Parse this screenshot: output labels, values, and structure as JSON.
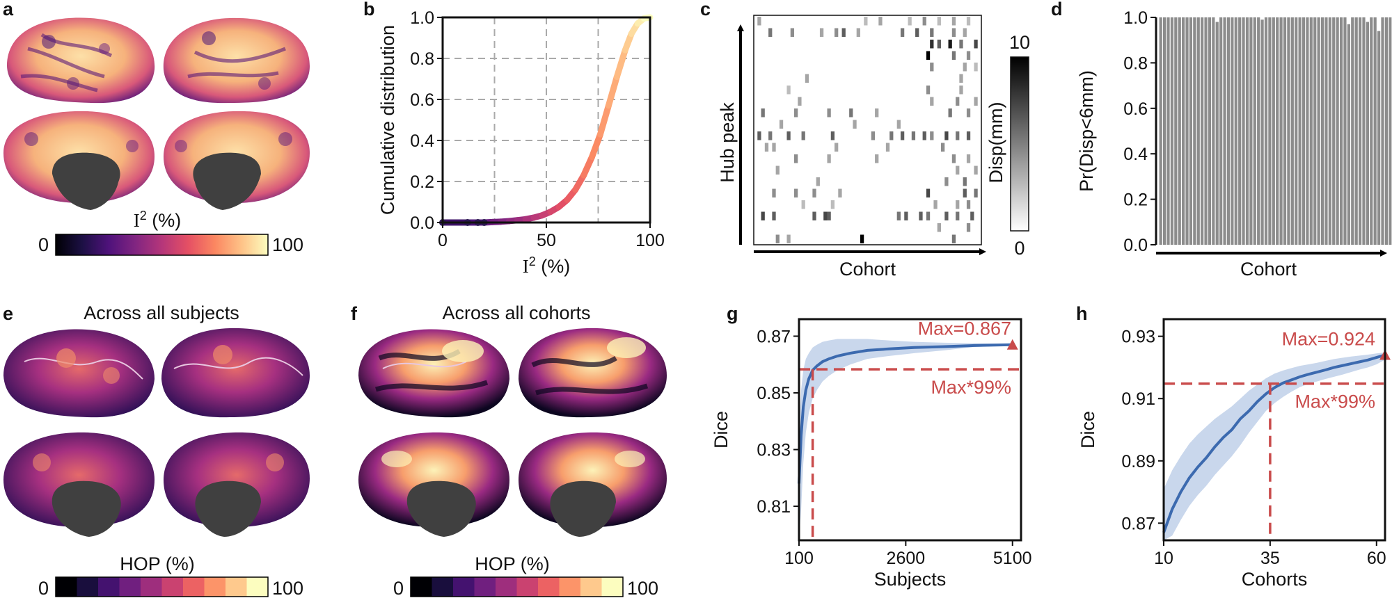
{
  "panels": {
    "a": {
      "label": "a",
      "cbar_title": "I",
      "cbar_sup": "2",
      "cbar_unit": " (%)",
      "cbar_min": "0",
      "cbar_max": "100"
    },
    "e": {
      "label": "e",
      "title": "Across all subjects",
      "cbar_title": "HOP (%)",
      "cbar_min": "0",
      "cbar_max": "100"
    },
    "f": {
      "label": "f",
      "title": "Across all cohorts",
      "cbar_title": "HOP (%)",
      "cbar_min": "0",
      "cbar_max": "100"
    }
  },
  "colors": {
    "magma": [
      "#000004",
      "#1c1044",
      "#4f127b",
      "#812581",
      "#b5367a",
      "#e55064",
      "#fb8761",
      "#fec287",
      "#fcfdbf"
    ],
    "line_blue": "#3c6aaf",
    "band_blue": "#9db7dc",
    "red": "#c94b4b",
    "gray_bar": "#8c8c8c",
    "medial_wall": "#404040"
  },
  "chart_data": [
    {
      "panel": "b",
      "type": "line",
      "title": "",
      "xlabel_base": "I",
      "xlabel_sup": "2",
      "xlabel_unit": " (%)",
      "ylabel": "Cumulative distribution",
      "xlim": [
        0,
        100
      ],
      "ylim": [
        0,
        1
      ],
      "xticks": [
        "0",
        "50",
        "100"
      ],
      "yticks": [
        "0.0",
        "0.2",
        "0.4",
        "0.6",
        "0.8",
        "1.0"
      ],
      "grid_x": [
        25,
        50,
        75
      ],
      "grid_y": [
        0.2,
        0.4,
        0.6,
        0.8,
        1.0
      ],
      "x": [
        0,
        12,
        17,
        20,
        24,
        28,
        32,
        36,
        40,
        44,
        48,
        52,
        56,
        60,
        64,
        68,
        72,
        76,
        80,
        84,
        88,
        91,
        94,
        97,
        100
      ],
      "y": [
        0,
        0.0,
        0.0,
        0.0,
        0.002,
        0.004,
        0.007,
        0.011,
        0.016,
        0.024,
        0.035,
        0.052,
        0.076,
        0.11,
        0.16,
        0.23,
        0.32,
        0.43,
        0.57,
        0.71,
        0.84,
        0.92,
        0.97,
        0.995,
        1.0
      ]
    },
    {
      "panel": "c",
      "type": "heatmap",
      "ylabel": "Hub peak",
      "xlabel": "Cohort",
      "cbar_label": "Disp(mm)",
      "cbar_min": "0",
      "cbar_max": "10",
      "n_rows": 20,
      "n_cols": 62,
      "cells": [
        [
          0,
          1,
          3
        ],
        [
          0,
          30,
          2
        ],
        [
          0,
          34,
          3
        ],
        [
          0,
          42,
          2
        ],
        [
          0,
          46,
          4
        ],
        [
          0,
          50,
          2
        ],
        [
          0,
          54,
          3
        ],
        [
          0,
          58,
          2
        ],
        [
          1,
          4,
          5
        ],
        [
          1,
          10,
          4
        ],
        [
          1,
          18,
          3
        ],
        [
          1,
          22,
          4
        ],
        [
          1,
          24,
          6
        ],
        [
          1,
          28,
          3
        ],
        [
          1,
          40,
          5
        ],
        [
          1,
          44,
          6
        ],
        [
          1,
          48,
          5
        ],
        [
          1,
          54,
          4
        ],
        [
          1,
          57,
          3
        ],
        [
          2,
          48,
          8
        ],
        [
          2,
          50,
          6
        ],
        [
          2,
          53,
          9
        ],
        [
          2,
          56,
          5
        ],
        [
          2,
          60,
          7
        ],
        [
          3,
          47,
          10
        ],
        [
          3,
          54,
          5
        ],
        [
          3,
          58,
          4
        ],
        [
          4,
          48,
          4
        ],
        [
          4,
          57,
          3
        ],
        [
          4,
          60,
          2
        ],
        [
          5,
          14,
          3
        ],
        [
          5,
          56,
          3
        ],
        [
          6,
          9,
          2
        ],
        [
          6,
          47,
          4
        ],
        [
          6,
          56,
          3
        ],
        [
          7,
          12,
          3
        ],
        [
          7,
          48,
          3
        ],
        [
          7,
          55,
          4
        ],
        [
          7,
          60,
          3
        ],
        [
          8,
          2,
          5
        ],
        [
          8,
          11,
          4
        ],
        [
          8,
          20,
          4
        ],
        [
          8,
          26,
          5
        ],
        [
          8,
          33,
          3
        ],
        [
          8,
          53,
          5
        ],
        [
          8,
          58,
          4
        ],
        [
          9,
          7,
          3
        ],
        [
          9,
          27,
          3
        ],
        [
          9,
          39,
          3
        ],
        [
          10,
          1,
          6
        ],
        [
          10,
          4,
          5
        ],
        [
          10,
          9,
          6
        ],
        [
          10,
          13,
          5
        ],
        [
          10,
          21,
          6
        ],
        [
          10,
          32,
          4
        ],
        [
          10,
          37,
          5
        ],
        [
          10,
          40,
          6
        ],
        [
          10,
          43,
          5
        ],
        [
          10,
          46,
          6
        ],
        [
          10,
          48,
          4
        ],
        [
          10,
          52,
          7
        ],
        [
          10,
          55,
          5
        ],
        [
          10,
          58,
          6
        ],
        [
          11,
          3,
          3
        ],
        [
          11,
          5,
          3
        ],
        [
          11,
          22,
          3
        ],
        [
          11,
          36,
          3
        ],
        [
          11,
          51,
          4
        ],
        [
          12,
          11,
          4
        ],
        [
          12,
          20,
          3
        ],
        [
          12,
          33,
          3
        ],
        [
          12,
          54,
          4
        ],
        [
          12,
          58,
          3
        ],
        [
          13,
          6,
          3
        ],
        [
          13,
          55,
          3
        ],
        [
          13,
          60,
          3
        ],
        [
          14,
          17,
          3
        ],
        [
          14,
          52,
          4
        ],
        [
          14,
          57,
          5
        ],
        [
          15,
          5,
          4
        ],
        [
          15,
          11,
          4
        ],
        [
          15,
          16,
          4
        ],
        [
          15,
          23,
          3
        ],
        [
          15,
          47,
          7
        ],
        [
          15,
          57,
          6
        ],
        [
          15,
          60,
          5
        ],
        [
          16,
          13,
          2
        ],
        [
          16,
          21,
          2
        ],
        [
          16,
          49,
          3
        ],
        [
          16,
          55,
          3
        ],
        [
          16,
          58,
          4
        ],
        [
          17,
          2,
          7
        ],
        [
          17,
          5,
          6
        ],
        [
          17,
          16,
          6
        ],
        [
          17,
          19,
          7
        ],
        [
          17,
          20,
          6
        ],
        [
          17,
          39,
          5
        ],
        [
          17,
          41,
          6
        ],
        [
          17,
          45,
          6
        ],
        [
          17,
          47,
          5
        ],
        [
          17,
          52,
          6
        ],
        [
          17,
          55,
          5
        ],
        [
          17,
          59,
          6
        ],
        [
          18,
          50,
          3
        ],
        [
          18,
          58,
          4
        ],
        [
          19,
          6,
          4
        ],
        [
          19,
          9,
          3
        ],
        [
          19,
          29,
          10
        ],
        [
          19,
          54,
          5
        ]
      ]
    },
    {
      "panel": "d",
      "type": "bar",
      "ylabel": "Pr(Disp<6mm)",
      "xlabel": "Cohort",
      "ylim": [
        0,
        1
      ],
      "yticks": [
        "0.0",
        "0.2",
        "0.4",
        "0.6",
        "0.8",
        "1.0"
      ],
      "values": [
        1,
        1,
        1,
        1,
        1,
        1,
        1,
        1,
        1,
        1,
        1,
        1,
        1,
        1,
        1,
        0.98,
        1,
        1,
        1,
        1,
        1,
        1,
        1,
        1,
        1,
        1,
        1,
        0.99,
        1,
        1,
        1,
        1,
        1,
        1,
        1,
        1,
        1,
        1,
        1,
        1,
        1,
        1,
        1,
        1,
        1,
        1,
        1,
        1,
        1,
        1,
        0.97,
        1,
        1,
        1,
        1,
        0.98,
        1,
        1,
        0.94,
        1,
        1,
        1
      ]
    },
    {
      "panel": "g",
      "type": "line",
      "xlabel": "Subjects",
      "ylabel": "Dice",
      "xlim": [
        100,
        5300
      ],
      "ylim": [
        0.798,
        0.876
      ],
      "xticks": [
        "100",
        "2600",
        "5100"
      ],
      "yticks": [
        "0.81",
        "0.83",
        "0.85",
        "0.87"
      ],
      "ytick_values": [
        0.81,
        0.83,
        0.85,
        0.87
      ],
      "xtick_values": [
        100,
        2600,
        5100
      ],
      "x": [
        100,
        150,
        200,
        260,
        330,
        420,
        520,
        650,
        800,
        1000,
        1300,
        1700,
        2200,
        2800,
        3500,
        4200,
        5100
      ],
      "mean": [
        0.818,
        0.835,
        0.845,
        0.851,
        0.855,
        0.858,
        0.8595,
        0.861,
        0.862,
        0.863,
        0.864,
        0.865,
        0.8655,
        0.866,
        0.8663,
        0.8667,
        0.867
      ],
      "upper": [
        0.836,
        0.851,
        0.858,
        0.862,
        0.864,
        0.866,
        0.867,
        0.868,
        0.8685,
        0.869,
        0.869,
        0.869,
        0.8685,
        0.868,
        0.8677,
        0.8675,
        0.8673
      ],
      "lower": [
        0.798,
        0.809,
        0.825,
        0.836,
        0.843,
        0.848,
        0.851,
        0.854,
        0.856,
        0.858,
        0.86,
        0.862,
        0.863,
        0.864,
        0.865,
        0.8662,
        0.8667
      ],
      "max_label": "Max=0.867",
      "max_value": 0.867,
      "threshold_label": "Max*99%",
      "threshold_value": 0.8583,
      "threshold_x": 420
    },
    {
      "panel": "h",
      "type": "line",
      "xlabel": "Cohorts",
      "ylabel": "Dice",
      "xlim": [
        10,
        62
      ],
      "ylim": [
        0.8645,
        0.9355
      ],
      "xticks": [
        "10",
        "35",
        "60"
      ],
      "yticks": [
        "0.87",
        "0.89",
        "0.91",
        "0.93"
      ],
      "ytick_values": [
        0.87,
        0.89,
        0.91,
        0.93
      ],
      "xtick_values": [
        10,
        35,
        60
      ],
      "x": [
        10,
        12,
        14,
        16,
        18,
        20,
        22,
        24,
        26,
        28,
        30,
        32,
        34,
        36,
        38,
        40,
        42,
        44,
        46,
        48,
        50,
        52,
        54,
        56,
        58,
        60,
        62
      ],
      "mean": [
        0.867,
        0.8745,
        0.88,
        0.8845,
        0.888,
        0.891,
        0.8945,
        0.8975,
        0.9,
        0.9035,
        0.906,
        0.909,
        0.9115,
        0.9135,
        0.915,
        0.916,
        0.917,
        0.9178,
        0.9185,
        0.9192,
        0.92,
        0.9206,
        0.9212,
        0.9218,
        0.9224,
        0.9232,
        0.924
      ],
      "upper": [
        0.881,
        0.887,
        0.8915,
        0.8955,
        0.8985,
        0.901,
        0.9035,
        0.9055,
        0.9075,
        0.91,
        0.9125,
        0.9145,
        0.9165,
        0.918,
        0.919,
        0.9198,
        0.9205,
        0.921,
        0.9215,
        0.9221,
        0.9227,
        0.9231,
        0.9235,
        0.9238,
        0.9241,
        0.9245,
        0.9248
      ],
      "lower": [
        0.8645,
        0.866,
        0.871,
        0.8755,
        0.879,
        0.882,
        0.8855,
        0.8885,
        0.8915,
        0.895,
        0.899,
        0.9025,
        0.906,
        0.9085,
        0.9105,
        0.9122,
        0.9137,
        0.9147,
        0.9155,
        0.9163,
        0.917,
        0.9177,
        0.9185,
        0.9193,
        0.92,
        0.921,
        0.9225
      ],
      "max_label": "Max=0.924",
      "max_value": 0.924,
      "threshold_label": "Max*99%",
      "threshold_value": 0.9148,
      "threshold_x": 35
    }
  ]
}
